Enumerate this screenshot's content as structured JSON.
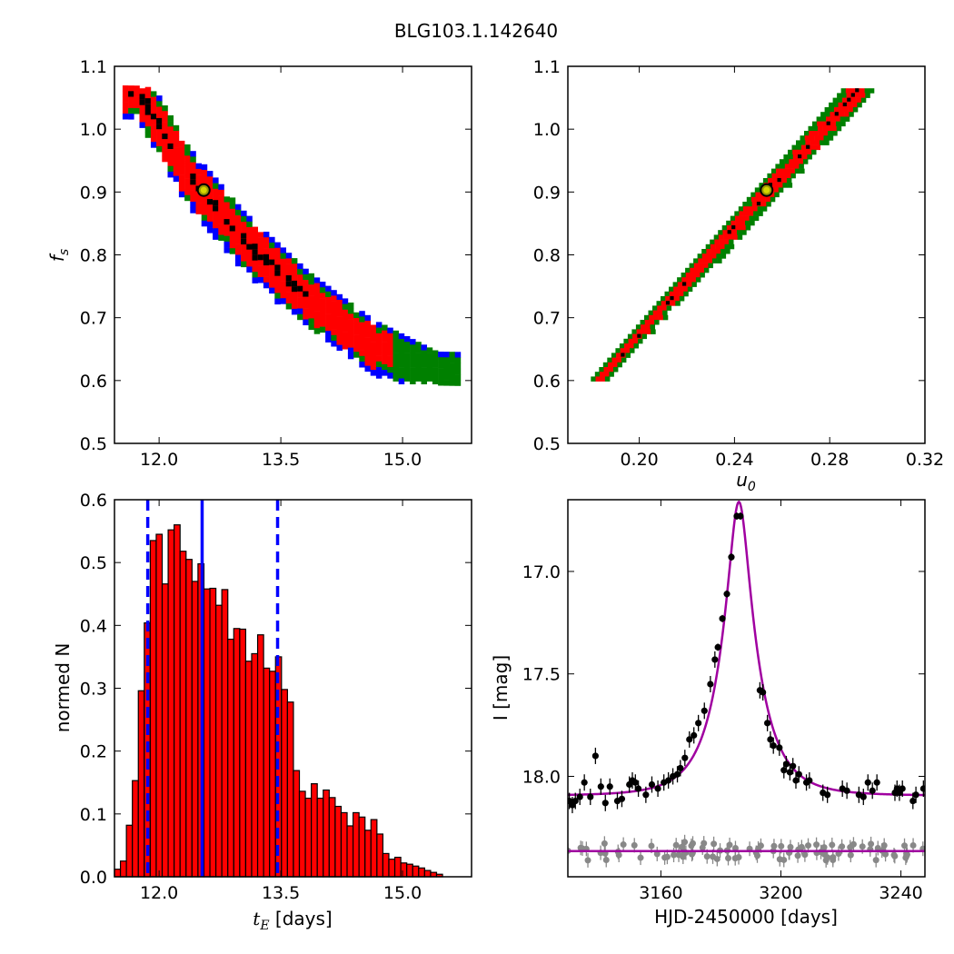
{
  "figure": {
    "title": "BLG103.1.142640"
  },
  "chart_data": [
    {
      "id": "fs-vs-tE",
      "type": "heatmap",
      "title": "",
      "xlabel": "",
      "ylabel": "f_s",
      "xlim": [
        11.45,
        15.85
      ],
      "ylim": [
        0.5,
        1.1
      ],
      "xticks": [
        "12.0",
        "13.5",
        "15.0"
      ],
      "xtick_values": [
        12.0,
        13.5,
        15.0
      ],
      "yticks": [
        "0.5",
        "0.6",
        "0.7",
        "0.8",
        "0.9",
        "1.0",
        "1.1"
      ],
      "ytick_values": [
        0.5,
        0.6,
        0.7,
        0.8,
        0.9,
        1.0,
        1.1
      ],
      "colors": {
        "outer": "#0000ff",
        "mid": "#008000",
        "inner": "#ff0000",
        "core": "#000000"
      },
      "band_centerline": [
        [
          11.7,
          1.065
        ],
        [
          12.3,
          0.93
        ],
        [
          13.0,
          0.825
        ],
        [
          13.8,
          0.73
        ],
        [
          14.6,
          0.655
        ],
        [
          15.4,
          0.605
        ]
      ],
      "best_fit": {
        "x": 12.55,
        "y": 0.903
      }
    },
    {
      "id": "fs-vs-u0",
      "type": "heatmap",
      "title": "",
      "xlabel": "u_0",
      "ylabel": "",
      "xlim": [
        0.17,
        0.32
      ],
      "ylim": [
        0.5,
        1.1
      ],
      "xticks": [
        "0.20",
        "0.24",
        "0.28",
        "0.32"
      ],
      "xtick_values": [
        0.2,
        0.24,
        0.28,
        0.32
      ],
      "yticks": [
        "0.5",
        "0.6",
        "0.7",
        "0.8",
        "0.9",
        "1.0",
        "1.1"
      ],
      "ytick_values": [
        0.5,
        0.6,
        0.7,
        0.8,
        0.9,
        1.0,
        1.1
      ],
      "colors": {
        "mid": "#008000",
        "inner": "#ff0000",
        "core": "#000000"
      },
      "band_centerline": [
        [
          0.182,
          0.6
        ],
        [
          0.292,
          1.065
        ]
      ],
      "best_fit": {
        "x": 0.2535,
        "y": 0.903
      }
    },
    {
      "id": "tE-histogram",
      "type": "bar",
      "title": "",
      "xlabel": "t_E [days]",
      "ylabel": "normed N",
      "xlim": [
        11.45,
        15.85
      ],
      "ylim": [
        0.0,
        0.6
      ],
      "xticks": [
        "12.0",
        "13.5",
        "15.0"
      ],
      "xtick_values": [
        12.0,
        13.5,
        15.0
      ],
      "yticks": [
        "0.0",
        "0.1",
        "0.2",
        "0.3",
        "0.4",
        "0.5",
        "0.6"
      ],
      "ytick_values": [
        0.0,
        0.1,
        0.2,
        0.3,
        0.4,
        0.5,
        0.6
      ],
      "bin_start": 11.45,
      "bin_width": 0.0735,
      "values": [
        0.012,
        0.025,
        0.082,
        0.153,
        0.296,
        0.404,
        0.535,
        0.545,
        0.466,
        0.552,
        0.56,
        0.518,
        0.505,
        0.47,
        0.498,
        0.458,
        0.459,
        0.432,
        0.457,
        0.378,
        0.395,
        0.394,
        0.343,
        0.355,
        0.385,
        0.332,
        0.327,
        0.35,
        0.298,
        0.278,
        0.169,
        0.136,
        0.125,
        0.148,
        0.125,
        0.138,
        0.126,
        0.112,
        0.102,
        0.081,
        0.102,
        0.095,
        0.074,
        0.091,
        0.068,
        0.037,
        0.028,
        0.031,
        0.022,
        0.02,
        0.017,
        0.014,
        0.01,
        0.007,
        0.004
      ],
      "bar_color": "#ff0000",
      "median": 12.53,
      "bounds": [
        11.86,
        13.46
      ],
      "line_color": "#0000ff"
    },
    {
      "id": "light-curve",
      "type": "scatter",
      "title": "",
      "xlabel": "HJD-2450000 [days]",
      "ylabel": "I [mag]",
      "xlim": [
        3129,
        3248
      ],
      "ylim": [
        18.49,
        16.65
      ],
      "xticks": [
        "3160",
        "3200",
        "3240"
      ],
      "xtick_values": [
        3160,
        3200,
        3240
      ],
      "yticks": [
        "17.0",
        "17.5",
        "18.0"
      ],
      "ytick_values": [
        17.0,
        17.5,
        18.0
      ],
      "model": {
        "t0": 3186.0,
        "tE": 12.6,
        "u0": 0.2535,
        "fs": 0.903,
        "baseline": 18.094,
        "color": "#a000a0"
      },
      "residual_baseline": 18.365,
      "points": [
        [
          3129.5,
          18.12
        ],
        [
          3130.5,
          18.14
        ],
        [
          3131.5,
          18.12
        ],
        [
          3133.0,
          18.1
        ],
        [
          3134.5,
          18.03
        ],
        [
          3136.5,
          18.1
        ],
        [
          3138.2,
          17.9
        ],
        [
          3140.0,
          18.05
        ],
        [
          3141.5,
          18.13
        ],
        [
          3143.0,
          18.05
        ],
        [
          3145.5,
          18.12
        ],
        [
          3147.0,
          18.11
        ],
        [
          3149.5,
          18.04
        ],
        [
          3150.5,
          18.02
        ],
        [
          3151.5,
          18.03
        ],
        [
          3152.5,
          18.06
        ],
        [
          3155.0,
          18.09
        ],
        [
          3157.0,
          18.04
        ],
        [
          3159.0,
          18.06
        ],
        [
          3161.0,
          18.03
        ],
        [
          3162.5,
          18.02
        ],
        [
          3164.0,
          18.0
        ],
        [
          3165.5,
          17.99
        ],
        [
          3166.5,
          17.96
        ],
        [
          3168.0,
          17.91
        ],
        [
          3169.5,
          17.82
        ],
        [
          3171.0,
          17.8
        ],
        [
          3172.5,
          17.74
        ],
        [
          3174.5,
          17.68
        ],
        [
          3176.5,
          17.55
        ],
        [
          3178.0,
          17.43
        ],
        [
          3179.0,
          17.37
        ],
        [
          3180.5,
          17.23
        ],
        [
          3182.0,
          17.11
        ],
        [
          3183.5,
          16.93
        ],
        [
          3185.3,
          16.73
        ],
        [
          3186.5,
          16.73
        ],
        [
          3193.0,
          17.58
        ],
        [
          3194.0,
          17.59
        ],
        [
          3195.5,
          17.74
        ],
        [
          3196.5,
          17.82
        ],
        [
          3197.5,
          17.85
        ],
        [
          3199.5,
          17.86
        ],
        [
          3201.0,
          17.97
        ],
        [
          3201.8,
          17.94
        ],
        [
          3203.0,
          17.98
        ],
        [
          3204.0,
          17.95
        ],
        [
          3205.0,
          18.02
        ],
        [
          3206.0,
          17.99
        ],
        [
          3208.5,
          18.03
        ],
        [
          3209.5,
          18.02
        ],
        [
          3214.0,
          18.08
        ],
        [
          3215.5,
          18.09
        ],
        [
          3220.5,
          18.06
        ],
        [
          3222.0,
          18.07
        ],
        [
          3226.0,
          18.09
        ],
        [
          3227.5,
          18.1
        ],
        [
          3229.0,
          18.03
        ],
        [
          3230.5,
          18.07
        ],
        [
          3232.0,
          18.03
        ],
        [
          3238.0,
          18.08
        ],
        [
          3238.7,
          18.06
        ],
        [
          3239.5,
          18.08
        ],
        [
          3240.5,
          18.06
        ],
        [
          3244.0,
          18.12
        ],
        [
          3245.0,
          18.09
        ],
        [
          3247.5,
          18.06
        ]
      ]
    }
  ]
}
